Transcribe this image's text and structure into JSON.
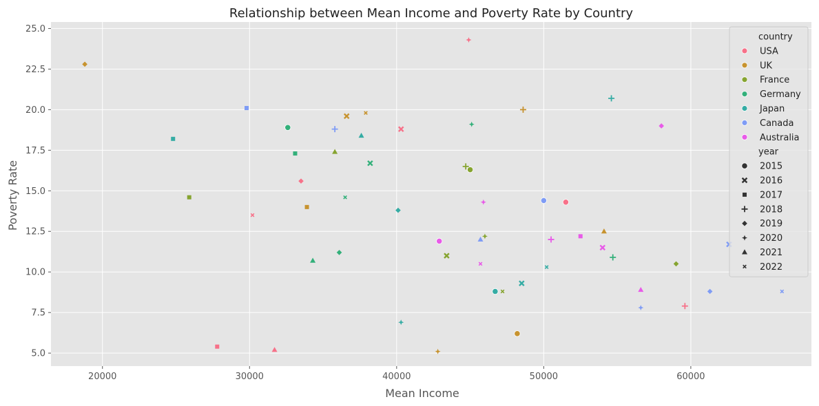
{
  "chart_data": {
    "type": "scatter",
    "title": "Relationship between Mean Income and Poverty Rate by Country",
    "xlabel": "Mean Income",
    "ylabel": "Poverty Rate",
    "xlim": [
      16500,
      68200
    ],
    "ylim": [
      4.2,
      25.4
    ],
    "xticks": [
      20000,
      30000,
      40000,
      50000,
      60000
    ],
    "yticks": [
      5.0,
      7.5,
      10.0,
      12.5,
      15.0,
      17.5,
      20.0,
      22.5,
      25.0
    ],
    "xtick_labels": [
      "20000",
      "30000",
      "40000",
      "50000",
      "60000"
    ],
    "ytick_labels": [
      "5.0",
      "7.5",
      "10.0",
      "12.5",
      "15.0",
      "17.5",
      "20.0",
      "22.5",
      "25.0"
    ],
    "grid": true,
    "legend_placement": "top-right",
    "hue_title": "country",
    "style_title": "year",
    "countries": [
      {
        "name": "USA",
        "color": "#f77189"
      },
      {
        "name": "UK",
        "color": "#c7932f"
      },
      {
        "name": "France",
        "color": "#86a430"
      },
      {
        "name": "Germany",
        "color": "#33b07a"
      },
      {
        "name": "Japan",
        "color": "#35aca4"
      },
      {
        "name": "Canada",
        "color": "#7f9cf5"
      },
      {
        "name": "Australia",
        "color": "#e85be8"
      }
    ],
    "years": [
      {
        "year": "2015",
        "marker": "circle"
      },
      {
        "year": "2016",
        "marker": "x"
      },
      {
        "year": "2017",
        "marker": "square"
      },
      {
        "year": "2018",
        "marker": "plus"
      },
      {
        "year": "2019",
        "marker": "diamond"
      },
      {
        "year": "2020",
        "marker": "star"
      },
      {
        "year": "2021",
        "marker": "triangle"
      },
      {
        "year": "2022",
        "marker": "smallx"
      }
    ],
    "points": [
      {
        "country": "USA",
        "year": "2015",
        "x": 51500,
        "y": 14.3
      },
      {
        "country": "USA",
        "year": "2016",
        "x": 40300,
        "y": 18.8
      },
      {
        "country": "USA",
        "year": "2017",
        "x": 27800,
        "y": 5.4
      },
      {
        "country": "USA",
        "year": "2018",
        "x": 59600,
        "y": 7.9
      },
      {
        "country": "USA",
        "year": "2019",
        "x": 33500,
        "y": 15.6
      },
      {
        "country": "USA",
        "year": "2020",
        "x": 44900,
        "y": 24.3
      },
      {
        "country": "USA",
        "year": "2021",
        "x": 31700,
        "y": 5.2
      },
      {
        "country": "USA",
        "year": "2022",
        "x": 30200,
        "y": 13.5
      },
      {
        "country": "UK",
        "year": "2015",
        "x": 48200,
        "y": 6.2
      },
      {
        "country": "UK",
        "year": "2016",
        "x": 36600,
        "y": 19.6
      },
      {
        "country": "UK",
        "year": "2017",
        "x": 33900,
        "y": 14.0
      },
      {
        "country": "UK",
        "year": "2018",
        "x": 48600,
        "y": 20.0
      },
      {
        "country": "UK",
        "year": "2019",
        "x": 18800,
        "y": 22.8
      },
      {
        "country": "UK",
        "year": "2020",
        "x": 42800,
        "y": 5.1
      },
      {
        "country": "UK",
        "year": "2021",
        "x": 54100,
        "y": 12.5
      },
      {
        "country": "UK",
        "year": "2022",
        "x": 37900,
        "y": 19.8
      },
      {
        "country": "France",
        "year": "2015",
        "x": 45000,
        "y": 16.3
      },
      {
        "country": "France",
        "year": "2016",
        "x": 43400,
        "y": 11.0
      },
      {
        "country": "France",
        "year": "2017",
        "x": 25900,
        "y": 14.6
      },
      {
        "country": "France",
        "year": "2018",
        "x": 44700,
        "y": 16.5
      },
      {
        "country": "France",
        "year": "2019",
        "x": 59000,
        "y": 10.5
      },
      {
        "country": "France",
        "year": "2020",
        "x": 46000,
        "y": 12.2
      },
      {
        "country": "France",
        "year": "2021",
        "x": 35800,
        "y": 17.4
      },
      {
        "country": "France",
        "year": "2022",
        "x": 47200,
        "y": 8.8
      },
      {
        "country": "Germany",
        "year": "2015",
        "x": 32600,
        "y": 18.9
      },
      {
        "country": "Germany",
        "year": "2016",
        "x": 38200,
        "y": 16.7
      },
      {
        "country": "Germany",
        "year": "2017",
        "x": 33100,
        "y": 17.3
      },
      {
        "country": "Germany",
        "year": "2018",
        "x": 54700,
        "y": 10.9
      },
      {
        "country": "Germany",
        "year": "2019",
        "x": 36100,
        "y": 11.2
      },
      {
        "country": "Germany",
        "year": "2020",
        "x": 45100,
        "y": 19.1
      },
      {
        "country": "Germany",
        "year": "2021",
        "x": 34300,
        "y": 10.7
      },
      {
        "country": "Germany",
        "year": "2022",
        "x": 36500,
        "y": 14.6
      },
      {
        "country": "Japan",
        "year": "2015",
        "x": 46700,
        "y": 8.8
      },
      {
        "country": "Japan",
        "year": "2016",
        "x": 48500,
        "y": 9.3
      },
      {
        "country": "Japan",
        "year": "2017",
        "x": 24800,
        "y": 18.2
      },
      {
        "country": "Japan",
        "year": "2018",
        "x": 54600,
        "y": 20.7
      },
      {
        "country": "Japan",
        "year": "2019",
        "x": 40100,
        "y": 13.8
      },
      {
        "country": "Japan",
        "year": "2020",
        "x": 40300,
        "y": 6.9
      },
      {
        "country": "Japan",
        "year": "2021",
        "x": 37600,
        "y": 18.4
      },
      {
        "country": "Japan",
        "year": "2022",
        "x": 50200,
        "y": 10.3
      },
      {
        "country": "Canada",
        "year": "2015",
        "x": 50000,
        "y": 14.4
      },
      {
        "country": "Canada",
        "year": "2016",
        "x": 62600,
        "y": 11.7
      },
      {
        "country": "Canada",
        "year": "2017",
        "x": 29800,
        "y": 20.1
      },
      {
        "country": "Canada",
        "year": "2018",
        "x": 35800,
        "y": 18.8
      },
      {
        "country": "Canada",
        "year": "2019",
        "x": 61300,
        "y": 8.8
      },
      {
        "country": "Canada",
        "year": "2020",
        "x": 56600,
        "y": 7.8
      },
      {
        "country": "Canada",
        "year": "2021",
        "x": 45700,
        "y": 12.0
      },
      {
        "country": "Canada",
        "year": "2022",
        "x": 66200,
        "y": 8.8
      },
      {
        "country": "Australia",
        "year": "2015",
        "x": 42900,
        "y": 11.9
      },
      {
        "country": "Australia",
        "year": "2016",
        "x": 54000,
        "y": 11.5
      },
      {
        "country": "Australia",
        "year": "2017",
        "x": 52500,
        "y": 12.2
      },
      {
        "country": "Australia",
        "year": "2018",
        "x": 50500,
        "y": 12.0
      },
      {
        "country": "Australia",
        "year": "2019",
        "x": 58000,
        "y": 19.0
      },
      {
        "country": "Australia",
        "year": "2020",
        "x": 45900,
        "y": 14.3
      },
      {
        "country": "Australia",
        "year": "2021",
        "x": 56600,
        "y": 8.9
      },
      {
        "country": "Australia",
        "year": "2022",
        "x": 45700,
        "y": 10.5
      }
    ]
  }
}
